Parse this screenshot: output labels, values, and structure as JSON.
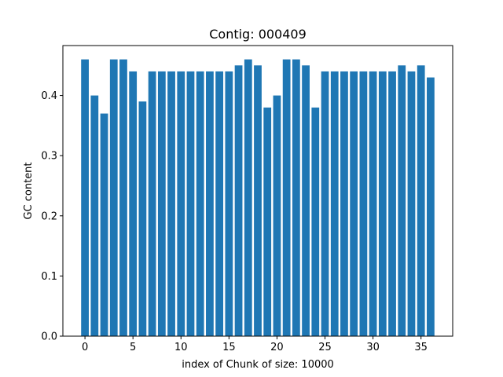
{
  "chart_data": {
    "type": "bar",
    "title": "Contig: 000409",
    "xlabel": "index of Chunk of size: 10000",
    "ylabel": "GC content",
    "x": [
      0,
      1,
      2,
      3,
      4,
      5,
      6,
      7,
      8,
      9,
      10,
      11,
      12,
      13,
      14,
      15,
      16,
      17,
      18,
      19,
      20,
      21,
      22,
      23,
      24,
      25,
      26,
      27,
      28,
      29,
      30,
      31,
      32,
      33,
      34,
      35,
      36
    ],
    "values": [
      0.46,
      0.4,
      0.37,
      0.46,
      0.46,
      0.44,
      0.39,
      0.44,
      0.44,
      0.44,
      0.44,
      0.44,
      0.44,
      0.44,
      0.44,
      0.44,
      0.45,
      0.46,
      0.45,
      0.38,
      0.4,
      0.46,
      0.46,
      0.45,
      0.38,
      0.44,
      0.44,
      0.44,
      0.44,
      0.44,
      0.44,
      0.44,
      0.44,
      0.45,
      0.44,
      0.45,
      0.43
    ],
    "xlim": [
      -2.3,
      38.3
    ],
    "ylim": [
      0,
      0.483
    ],
    "xticks": [
      0,
      5,
      10,
      15,
      20,
      25,
      30,
      35
    ],
    "xtick_labels": [
      "0",
      "5",
      "10",
      "15",
      "20",
      "25",
      "30",
      "35"
    ],
    "yticks": [
      0,
      0.1,
      0.2,
      0.3,
      0.4
    ],
    "ytick_labels": [
      "0.0",
      "0.1",
      "0.2",
      "0.3",
      "0.4"
    ],
    "bar_color": "#1f77b4",
    "grid": false,
    "legend": "none"
  }
}
